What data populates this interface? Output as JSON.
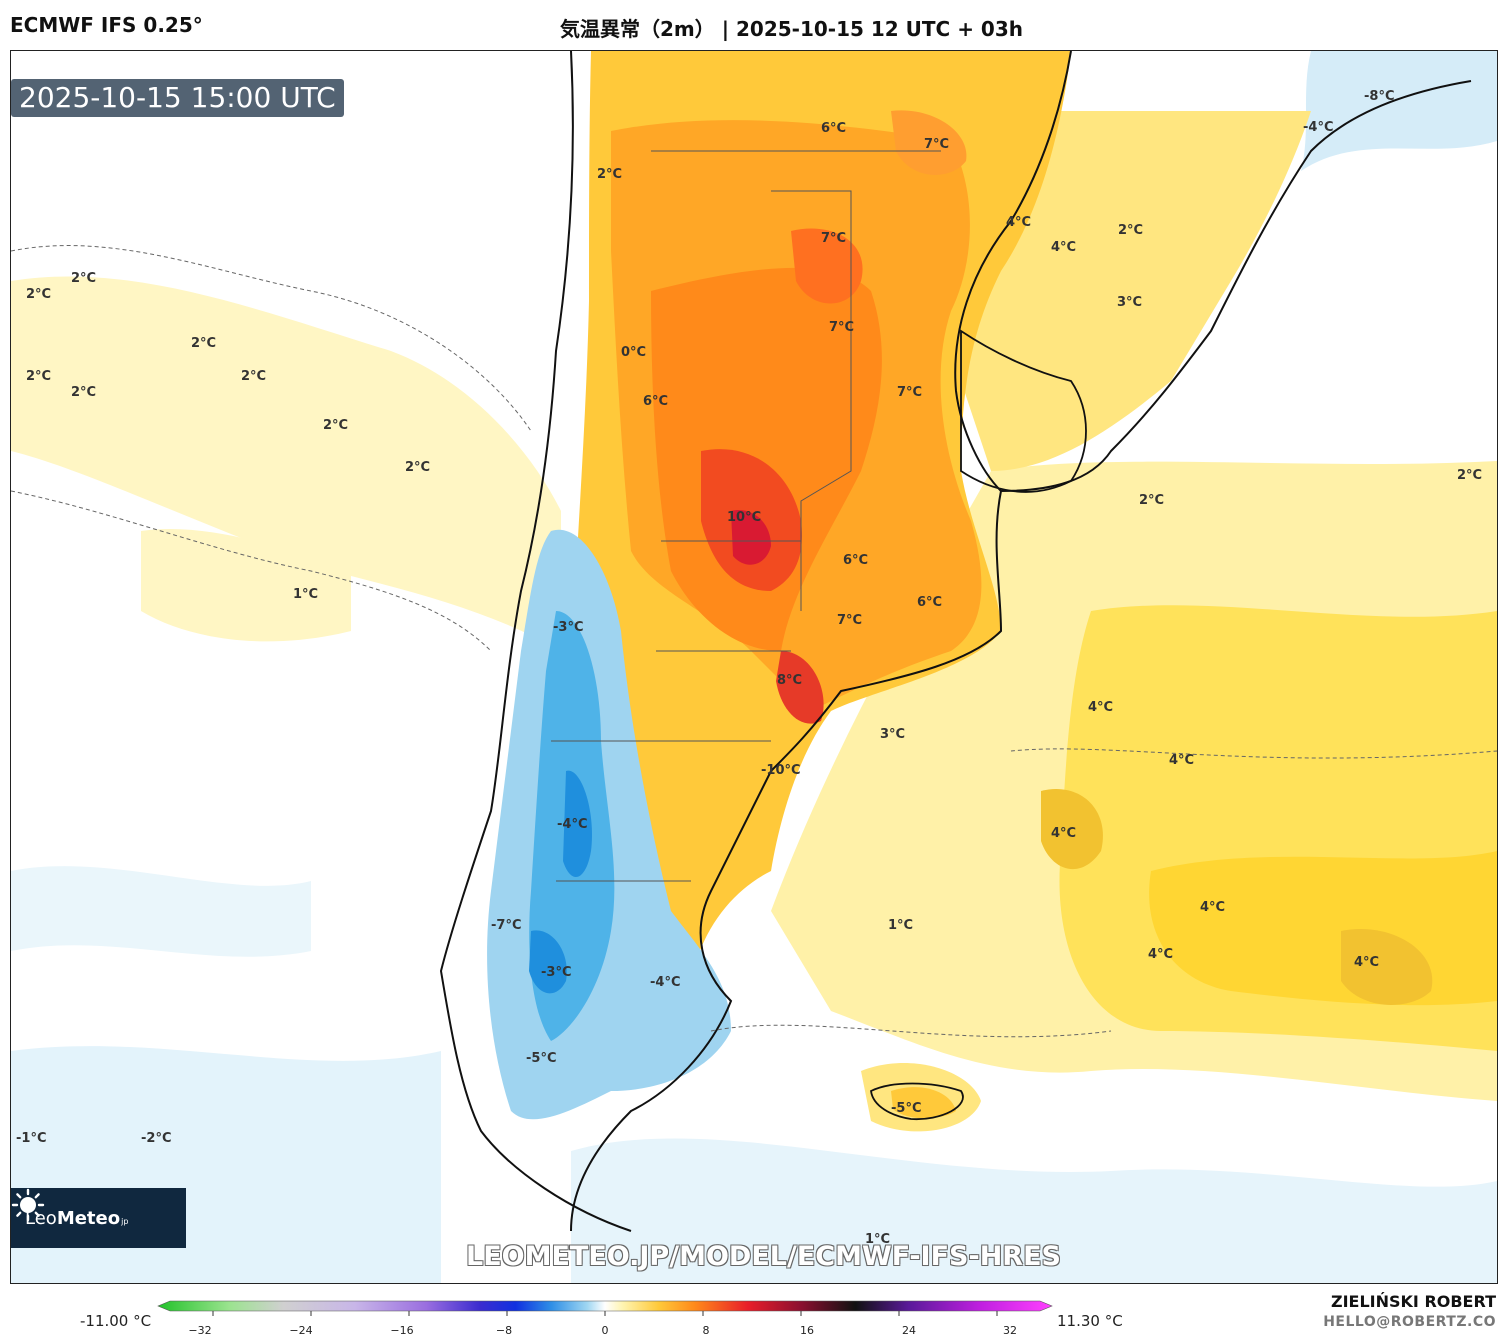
{
  "header": {
    "model": "ECMWF IFS 0.25°",
    "title": "気温異常（2m） | 2025-10-15 12 UTC + 03h"
  },
  "map": {
    "timestamp": "2025-10-15 15:00 UTC",
    "watermark": "LEOMETEO.JP/MODEL/ECMWF-IFS-HRES",
    "logo": {
      "brand_light": "Leo",
      "brand_bold": "Meteo",
      "suffix": "jp",
      "icon": "sun-icon"
    },
    "labels": [
      {
        "text": "6°C"
      },
      {
        "text": "7°C"
      },
      {
        "text": "2°C"
      },
      {
        "text": "-8°C"
      },
      {
        "text": "-4°C"
      },
      {
        "text": "4°C"
      },
      {
        "text": "4°C"
      },
      {
        "text": "7°C"
      },
      {
        "text": "2°C"
      },
      {
        "text": "2°C"
      },
      {
        "text": "2°C"
      },
      {
        "text": "3°C"
      },
      {
        "text": "7°C"
      },
      {
        "text": "0°C"
      },
      {
        "text": "2°C"
      },
      {
        "text": "2°C"
      },
      {
        "text": "2°C"
      },
      {
        "text": "7°C"
      },
      {
        "text": "6°C"
      },
      {
        "text": "2°C"
      },
      {
        "text": "2°C"
      },
      {
        "text": "2°C"
      },
      {
        "text": "10°C"
      },
      {
        "text": "2°C"
      },
      {
        "text": "6°C"
      },
      {
        "text": "2°C"
      },
      {
        "text": "1°C"
      },
      {
        "text": "6°C"
      },
      {
        "text": "7°C"
      },
      {
        "text": "-3°C"
      },
      {
        "text": "8°C"
      },
      {
        "text": "4°C"
      },
      {
        "text": "3°C"
      },
      {
        "text": "4°C"
      },
      {
        "text": "-10°C"
      },
      {
        "text": "-4°C"
      },
      {
        "text": "4°C"
      },
      {
        "text": "4°C"
      },
      {
        "text": "-7°C"
      },
      {
        "text": "1°C"
      },
      {
        "text": "4°C"
      },
      {
        "text": "4°C"
      },
      {
        "text": "-3°C"
      },
      {
        "text": "-4°C"
      },
      {
        "text": "-5°C"
      },
      {
        "text": "-5°C"
      },
      {
        "text": "-1°C"
      },
      {
        "text": "-2°C"
      },
      {
        "text": "1°C"
      }
    ]
  },
  "colorbar": {
    "min_label": "-11.00 °C",
    "max_label": "11.30 °C",
    "ticks": [
      {
        "value": -32,
        "label": "−32"
      },
      {
        "value": -24,
        "label": "−24"
      },
      {
        "value": -16,
        "label": "−16"
      },
      {
        "value": -8,
        "label": "−8"
      },
      {
        "value": 0,
        "label": "0"
      },
      {
        "value": 8,
        "label": "8"
      },
      {
        "value": 16,
        "label": "16"
      },
      {
        "value": 24,
        "label": "24"
      },
      {
        "value": 32,
        "label": "32"
      }
    ],
    "range": [
      -36,
      36
    ]
  },
  "credit": {
    "author": "ZIELIŃSKI ROBERT",
    "email": "HELLO@ROBERTZ.CO"
  }
}
